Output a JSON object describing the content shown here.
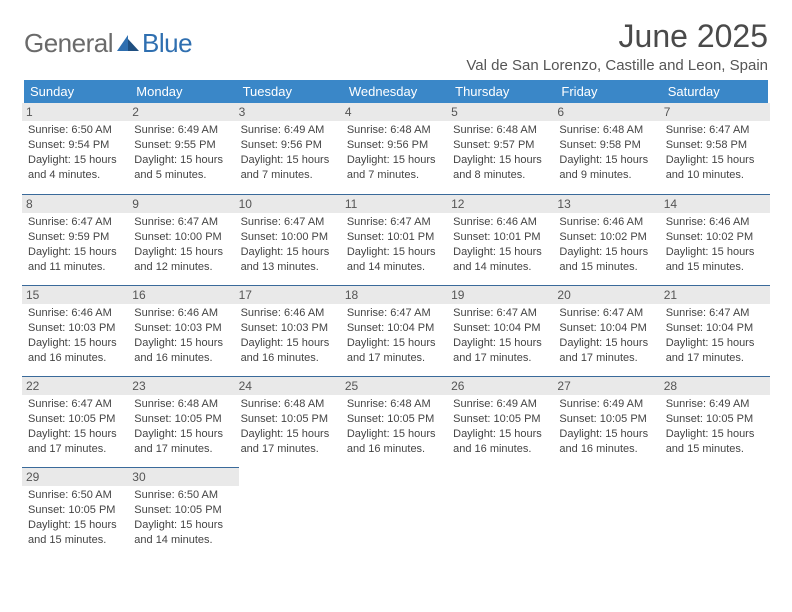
{
  "brand": {
    "part1": "General",
    "part2": "Blue"
  },
  "title": "June 2025",
  "location": "Val de San Lorenzo, Castille and Leon, Spain",
  "colors": {
    "header_bg": "#3a87c8",
    "brand_gray": "#6a6a6a",
    "brand_blue": "#2f6fb0",
    "daynum_bg": "#e9e9e9",
    "row_border": "#3a6a9a"
  },
  "dayHeaders": [
    "Sunday",
    "Monday",
    "Tuesday",
    "Wednesday",
    "Thursday",
    "Friday",
    "Saturday"
  ],
  "weeks": [
    [
      {
        "n": "1",
        "sr": "6:50 AM",
        "ss": "9:54 PM",
        "dl": "15 hours and 4 minutes."
      },
      {
        "n": "2",
        "sr": "6:49 AM",
        "ss": "9:55 PM",
        "dl": "15 hours and 5 minutes."
      },
      {
        "n": "3",
        "sr": "6:49 AM",
        "ss": "9:56 PM",
        "dl": "15 hours and 7 minutes."
      },
      {
        "n": "4",
        "sr": "6:48 AM",
        "ss": "9:56 PM",
        "dl": "15 hours and 7 minutes."
      },
      {
        "n": "5",
        "sr": "6:48 AM",
        "ss": "9:57 PM",
        "dl": "15 hours and 8 minutes."
      },
      {
        "n": "6",
        "sr": "6:48 AM",
        "ss": "9:58 PM",
        "dl": "15 hours and 9 minutes."
      },
      {
        "n": "7",
        "sr": "6:47 AM",
        "ss": "9:58 PM",
        "dl": "15 hours and 10 minutes."
      }
    ],
    [
      {
        "n": "8",
        "sr": "6:47 AM",
        "ss": "9:59 PM",
        "dl": "15 hours and 11 minutes."
      },
      {
        "n": "9",
        "sr": "6:47 AM",
        "ss": "10:00 PM",
        "dl": "15 hours and 12 minutes."
      },
      {
        "n": "10",
        "sr": "6:47 AM",
        "ss": "10:00 PM",
        "dl": "15 hours and 13 minutes."
      },
      {
        "n": "11",
        "sr": "6:47 AM",
        "ss": "10:01 PM",
        "dl": "15 hours and 14 minutes."
      },
      {
        "n": "12",
        "sr": "6:46 AM",
        "ss": "10:01 PM",
        "dl": "15 hours and 14 minutes."
      },
      {
        "n": "13",
        "sr": "6:46 AM",
        "ss": "10:02 PM",
        "dl": "15 hours and 15 minutes."
      },
      {
        "n": "14",
        "sr": "6:46 AM",
        "ss": "10:02 PM",
        "dl": "15 hours and 15 minutes."
      }
    ],
    [
      {
        "n": "15",
        "sr": "6:46 AM",
        "ss": "10:03 PM",
        "dl": "15 hours and 16 minutes."
      },
      {
        "n": "16",
        "sr": "6:46 AM",
        "ss": "10:03 PM",
        "dl": "15 hours and 16 minutes."
      },
      {
        "n": "17",
        "sr": "6:46 AM",
        "ss": "10:03 PM",
        "dl": "15 hours and 16 minutes."
      },
      {
        "n": "18",
        "sr": "6:47 AM",
        "ss": "10:04 PM",
        "dl": "15 hours and 17 minutes."
      },
      {
        "n": "19",
        "sr": "6:47 AM",
        "ss": "10:04 PM",
        "dl": "15 hours and 17 minutes."
      },
      {
        "n": "20",
        "sr": "6:47 AM",
        "ss": "10:04 PM",
        "dl": "15 hours and 17 minutes."
      },
      {
        "n": "21",
        "sr": "6:47 AM",
        "ss": "10:04 PM",
        "dl": "15 hours and 17 minutes."
      }
    ],
    [
      {
        "n": "22",
        "sr": "6:47 AM",
        "ss": "10:05 PM",
        "dl": "15 hours and 17 minutes."
      },
      {
        "n": "23",
        "sr": "6:48 AM",
        "ss": "10:05 PM",
        "dl": "15 hours and 17 minutes."
      },
      {
        "n": "24",
        "sr": "6:48 AM",
        "ss": "10:05 PM",
        "dl": "15 hours and 17 minutes."
      },
      {
        "n": "25",
        "sr": "6:48 AM",
        "ss": "10:05 PM",
        "dl": "15 hours and 16 minutes."
      },
      {
        "n": "26",
        "sr": "6:49 AM",
        "ss": "10:05 PM",
        "dl": "15 hours and 16 minutes."
      },
      {
        "n": "27",
        "sr": "6:49 AM",
        "ss": "10:05 PM",
        "dl": "15 hours and 16 minutes."
      },
      {
        "n": "28",
        "sr": "6:49 AM",
        "ss": "10:05 PM",
        "dl": "15 hours and 15 minutes."
      }
    ],
    [
      {
        "n": "29",
        "sr": "6:50 AM",
        "ss": "10:05 PM",
        "dl": "15 hours and 15 minutes."
      },
      {
        "n": "30",
        "sr": "6:50 AM",
        "ss": "10:05 PM",
        "dl": "15 hours and 14 minutes."
      },
      null,
      null,
      null,
      null,
      null
    ]
  ],
  "labels": {
    "sunrise": "Sunrise: ",
    "sunset": "Sunset: ",
    "daylight": "Daylight: "
  }
}
